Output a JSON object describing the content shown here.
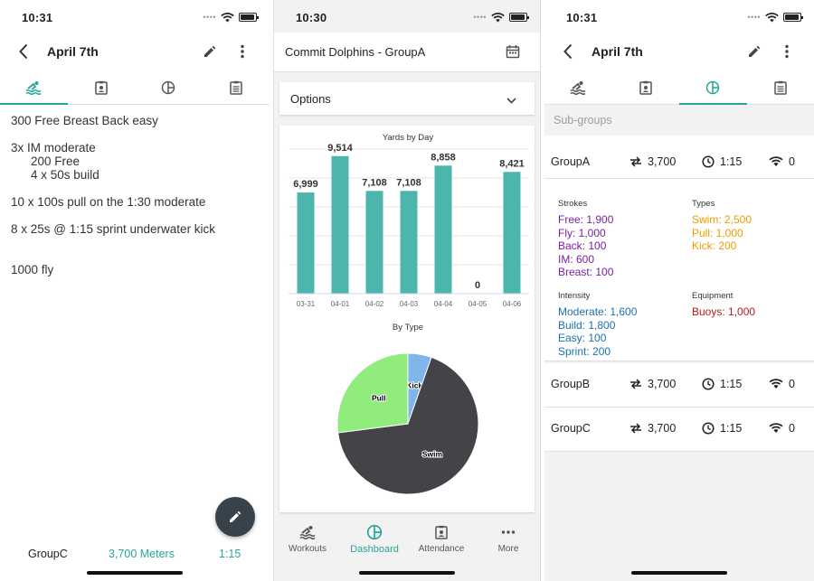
{
  "screen1": {
    "time": "10:31",
    "title": "April 7th",
    "workout_lines": [
      {
        "text": "300 Free Breast Back easy",
        "indent": 0,
        "gap": 0
      },
      {
        "text": "3x IM moderate",
        "indent": 0,
        "gap": 1
      },
      {
        "text": "200 Free",
        "indent": 22,
        "gap": 0
      },
      {
        "text": "4 x 50s build",
        "indent": 22,
        "gap": 0
      },
      {
        "text": "10 x 100s pull on the 1:30 moderate",
        "indent": 0,
        "gap": 1
      },
      {
        "text": "8 x 25s @ 1:15 sprint underwater kick",
        "indent": 0,
        "gap": 1
      },
      {
        "text": "1000 fly",
        "indent": 0,
        "gap": 2
      }
    ],
    "footer": {
      "group": "GroupC",
      "distance": "3,700 Meters",
      "duration": "1:15"
    }
  },
  "screen2": {
    "time": "10:30",
    "team_title": "Commit Dolphins - GroupA",
    "options_label": "Options",
    "nav": [
      {
        "label": "Workouts",
        "icon": "swimmer-icon",
        "active": false
      },
      {
        "label": "Dashboard",
        "icon": "pie-chart-icon",
        "active": true
      },
      {
        "label": "Attendance",
        "icon": "badge-icon",
        "active": false
      },
      {
        "label": "More",
        "icon": "more-horizontal-icon",
        "active": false
      }
    ]
  },
  "chart_data": [
    {
      "type": "bar",
      "title": "Yards by Day",
      "categories": [
        "03-31",
        "04-01",
        "04-02",
        "04-03",
        "04-04",
        "04-05",
        "04-06"
      ],
      "values": [
        6999,
        9514,
        7108,
        7108,
        8858,
        0,
        8421
      ],
      "value_labels": [
        "6,999",
        "9,514",
        "7,108",
        "7,108",
        "8,858",
        "0",
        "8,421"
      ],
      "ylim": [
        0,
        10000
      ],
      "grid": true,
      "color": "#4db6ac"
    },
    {
      "type": "pie",
      "title": "By Type",
      "labels": [
        "Kick",
        "Swim",
        "Pull"
      ],
      "values": [
        200,
        2500,
        1000
      ],
      "colors": [
        "#7eb6ec",
        "#434348",
        "#90ed7d"
      ]
    }
  ],
  "screen3": {
    "time": "10:31",
    "title": "April 7th",
    "subgroups_label": "Sub-groups",
    "groups": [
      {
        "name": "GroupA",
        "distance": "3,700",
        "time": "1:15",
        "signal": "0"
      },
      {
        "name": "GroupB",
        "distance": "3,700",
        "time": "1:15",
        "signal": "0"
      },
      {
        "name": "GroupC",
        "distance": "3,700",
        "time": "1:15",
        "signal": "0"
      }
    ],
    "strokes": {
      "heading": "Strokes",
      "items": [
        "Free: 1,900",
        "Fly: 1,000",
        "Back: 100",
        "IM: 600",
        "Breast: 100"
      ]
    },
    "types": {
      "heading": "Types",
      "items": [
        "Swim: 2,500",
        "Pull: 1,000",
        "Kick: 200"
      ]
    },
    "intensity": {
      "heading": "Intensity",
      "items": [
        "Moderate: 1,600",
        "Build: 1,800",
        "Easy: 100",
        "Sprint: 200"
      ]
    },
    "equipment": {
      "heading": "Equipment",
      "items": [
        "Buoys: 1,000"
      ]
    }
  },
  "colors": {
    "accent": "#26a69a",
    "fab": "#37424a",
    "strokes": "#7b1fa2",
    "types": "#f29900",
    "intensity": "#1a73a8",
    "equipment": "#b71c1c"
  }
}
